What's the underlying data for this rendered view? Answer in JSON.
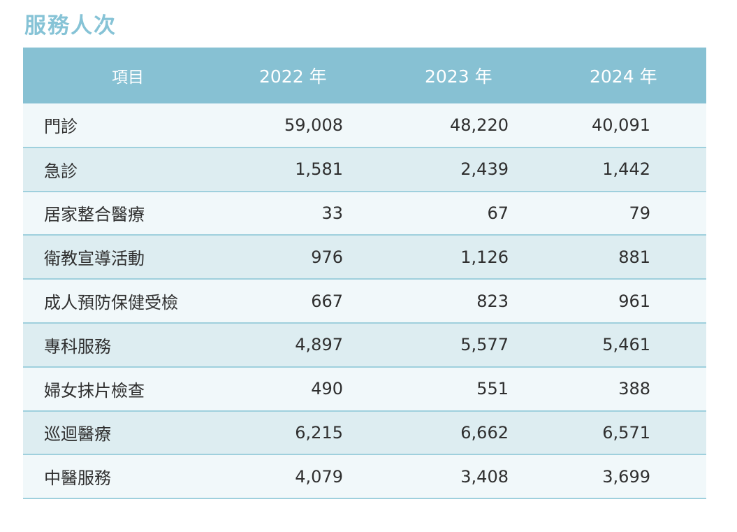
{
  "title": "服務人次",
  "table": {
    "headers": [
      "項目",
      "2022 年",
      "2023 年",
      "2024 年"
    ],
    "rows": [
      {
        "label": "門診",
        "y2022": "59,008",
        "y2023": "48,220",
        "y2024": "40,091"
      },
      {
        "label": "急診",
        "y2022": "1,581",
        "y2023": "2,439",
        "y2024": "1,442"
      },
      {
        "label": "居家整合醫療",
        "y2022": "33",
        "y2023": "67",
        "y2024": "79"
      },
      {
        "label": "衛教宣導活動",
        "y2022": "976",
        "y2023": "1,126",
        "y2024": "881"
      },
      {
        "label": "成人預防保健受檢",
        "y2022": "667",
        "y2023": "823",
        "y2024": "961"
      },
      {
        "label": "專科服務",
        "y2022": "4,897",
        "y2023": "5,577",
        "y2024": "5,461"
      },
      {
        "label": "婦女抹片檢查",
        "y2022": "490",
        "y2023": "551",
        "y2024": "388"
      },
      {
        "label": "巡迴醫療",
        "y2022": "6,215",
        "y2023": "6,662",
        "y2024": "6,571"
      },
      {
        "label": "中醫服務",
        "y2022": "4,079",
        "y2023": "3,408",
        "y2024": "3,699"
      }
    ]
  },
  "colors": {
    "accent": "#86c3d6",
    "header_bg": "#87c1d3",
    "row_light": "#f1f8fa",
    "row_dark": "#ddedf1",
    "row_border": "#9fd0dd"
  }
}
